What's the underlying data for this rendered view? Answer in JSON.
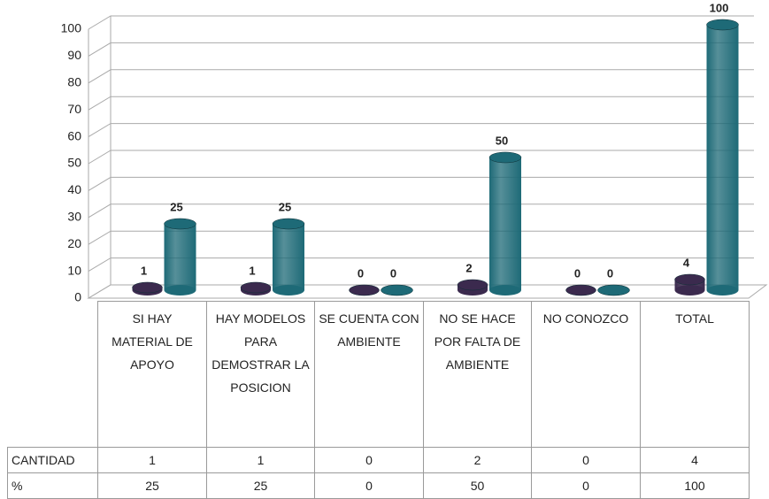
{
  "chart_data": {
    "type": "bar",
    "categories": [
      "SI HAY MATERIAL DE APOYO",
      "HAY MODELOS PARA DEMOSTRAR LA POSICION",
      "SE CUENTA CON AMBIENTE",
      "NO SE HACE POR FALTA DE AMBIENTE",
      "NO CONOZCO",
      "TOTAL"
    ],
    "series": [
      {
        "name": "CANTIDAD",
        "color": "#3b2a4e",
        "values": [
          1,
          1,
          0,
          2,
          0,
          4
        ]
      },
      {
        "name": "%",
        "color": "#1e6a77",
        "values": [
          25,
          25,
          0,
          50,
          0,
          100
        ]
      }
    ],
    "ylim": [
      0,
      100
    ],
    "yticks": [
      0,
      10,
      20,
      30,
      40,
      50,
      60,
      70,
      80,
      90,
      100
    ],
    "grid": true
  }
}
